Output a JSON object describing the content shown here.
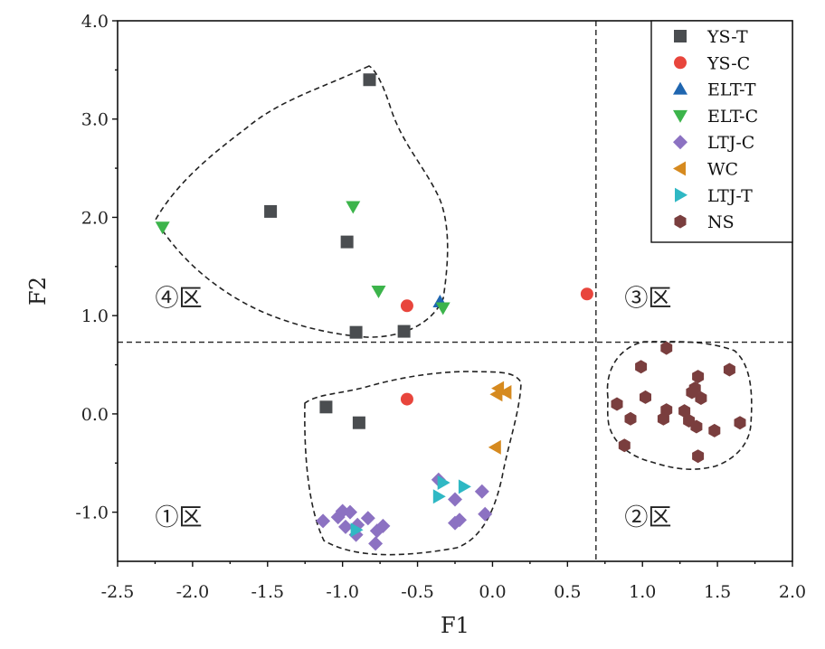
{
  "chart_data": {
    "type": "scatter",
    "title": "",
    "xlabel": "F1",
    "ylabel": "F2",
    "xlim": [
      -2.5,
      2.0
    ],
    "ylim": [
      -1.5,
      4.0
    ],
    "xticks": [
      -2.5,
      -2.0,
      -1.5,
      -1.0,
      -0.5,
      0.0,
      0.5,
      1.0,
      1.5,
      2.0
    ],
    "yticks": [
      -1.0,
      0.0,
      1.0,
      2.0,
      3.0,
      4.0
    ],
    "xtick_labels": [
      "-2.5",
      "-2.0",
      "-1.5",
      "-1.0",
      "-0.5",
      "0.0",
      "0.5",
      "1.0",
      "1.5",
      "2.0"
    ],
    "ytick_labels": [
      "-1.0",
      "0.0",
      "1.0",
      "2.0",
      "3.0",
      "4.0"
    ],
    "grid": false,
    "legend_position": "top-right",
    "reference_lines": {
      "x": 0.69,
      "y": 0.73
    },
    "zone_labels": [
      {
        "text": "④区",
        "x": -2.25,
        "y": 1.1
      },
      {
        "text": "③区",
        "x": 0.88,
        "y": 1.1
      },
      {
        "text": "①区",
        "x": -2.25,
        "y": -1.13
      },
      {
        "text": "②区",
        "x": 0.88,
        "y": -1.13
      }
    ],
    "series": [
      {
        "name": "YS-T",
        "marker": "square",
        "color": "#4a4d50",
        "points": [
          [
            -0.82,
            3.4
          ],
          [
            -1.48,
            2.06
          ],
          [
            -0.97,
            1.75
          ],
          [
            -0.91,
            0.83
          ],
          [
            -0.59,
            0.84
          ],
          [
            -1.11,
            0.07
          ],
          [
            -0.89,
            -0.09
          ]
        ]
      },
      {
        "name": "YS-C",
        "marker": "circle",
        "color": "#e8453c",
        "points": [
          [
            -0.57,
            1.1
          ],
          [
            0.63,
            1.22
          ],
          [
            -0.57,
            0.15
          ]
        ]
      },
      {
        "name": "ELT-T",
        "marker": "triangle-up",
        "color": "#1f66b0",
        "points": [
          [
            -0.35,
            1.14
          ]
        ]
      },
      {
        "name": "ELT-C",
        "marker": "triangle-down",
        "color": "#3cb44b",
        "points": [
          [
            -2.2,
            1.9
          ],
          [
            -0.93,
            2.11
          ],
          [
            -0.76,
            1.25
          ],
          [
            -0.33,
            1.08
          ]
        ]
      },
      {
        "name": "LTJ-C",
        "marker": "diamond",
        "color": "#8c72c2",
        "points": [
          [
            -1.13,
            -1.09
          ],
          [
            -1.03,
            -1.05
          ],
          [
            -1.0,
            -0.99
          ],
          [
            -0.95,
            -1.0
          ],
          [
            -0.98,
            -1.15
          ],
          [
            -0.9,
            -1.13
          ],
          [
            -0.83,
            -1.06
          ],
          [
            -0.77,
            -1.19
          ],
          [
            -0.73,
            -1.14
          ],
          [
            -0.78,
            -1.32
          ],
          [
            -0.36,
            -0.67
          ],
          [
            -0.25,
            -0.87
          ],
          [
            -0.25,
            -1.11
          ],
          [
            -0.22,
            -1.08
          ],
          [
            -0.07,
            -0.79
          ],
          [
            -0.05,
            -1.02
          ],
          [
            -0.91,
            -1.23
          ]
        ]
      },
      {
        "name": "WC",
        "marker": "triangle-left",
        "color": "#d68a1f",
        "points": [
          [
            0.04,
            0.26
          ],
          [
            0.09,
            0.22
          ],
          [
            0.03,
            0.2
          ],
          [
            0.02,
            -0.34
          ]
        ]
      },
      {
        "name": "LTJ-T",
        "marker": "triangle-right",
        "color": "#2fb8c4",
        "points": [
          [
            -0.33,
            -0.7
          ],
          [
            -0.19,
            -0.74
          ],
          [
            -0.36,
            -0.84
          ],
          [
            -0.91,
            -1.18
          ]
        ]
      },
      {
        "name": "NS",
        "marker": "hexagon",
        "color": "#7a3e3e",
        "points": [
          [
            1.16,
            0.67
          ],
          [
            0.99,
            0.48
          ],
          [
            1.37,
            0.38
          ],
          [
            1.58,
            0.45
          ],
          [
            1.35,
            0.26
          ],
          [
            1.02,
            0.17
          ],
          [
            1.39,
            0.16
          ],
          [
            1.33,
            0.22
          ],
          [
            0.83,
            0.1
          ],
          [
            1.28,
            0.03
          ],
          [
            1.16,
            0.04
          ],
          [
            0.92,
            -0.05
          ],
          [
            1.14,
            -0.05
          ],
          [
            1.31,
            -0.07
          ],
          [
            1.65,
            -0.09
          ],
          [
            1.36,
            -0.13
          ],
          [
            1.48,
            -0.17
          ],
          [
            0.88,
            -0.32
          ],
          [
            1.37,
            -0.43
          ]
        ]
      }
    ]
  }
}
